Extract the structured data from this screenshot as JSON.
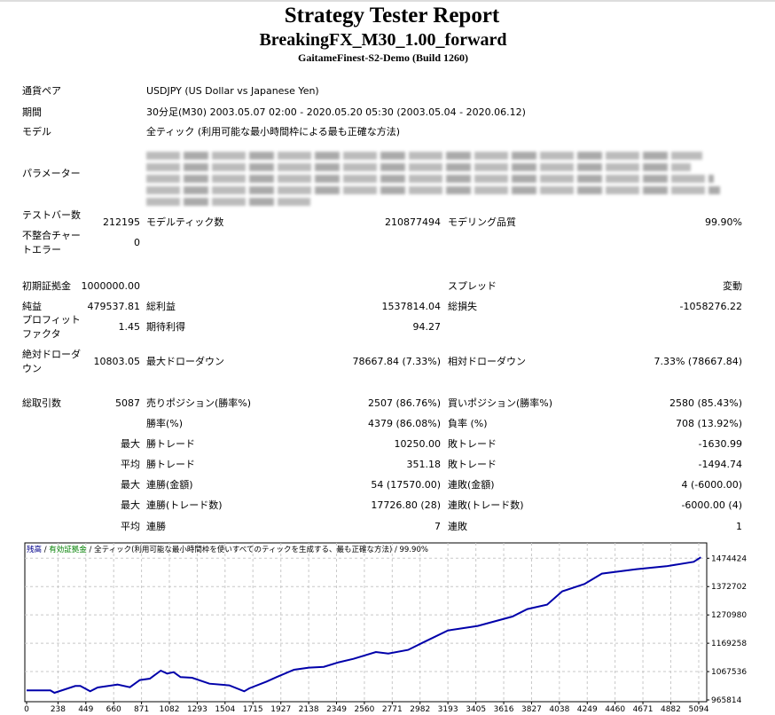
{
  "header": {
    "title": "Strategy Tester Report",
    "ea_name": "BreakingFX_M30_1.00_forward",
    "server": "GaitameFinest-S2-Demo (Build 1260)"
  },
  "info": {
    "symbol_label": "通貨ペア",
    "symbol_value": "USDJPY (US Dollar vs Japanese Yen)",
    "period_label": "期間",
    "period_value": "30分足(M30) 2003.05.07 02:00 - 2020.05.20 05:30 (2003.05.04 - 2020.06.12)",
    "model_label": "モデル",
    "model_value": "全ティック (利用可能な最小時間枠による最も正確な方法)",
    "params_label": "パラメーター"
  },
  "stats": [
    {
      "label": "テストバー数",
      "value": "212195",
      "label2": "モデルティック数",
      "value2": "210877494",
      "label3": "モデリング品質",
      "value3": "99.90%"
    },
    {
      "label": "不整合チャートエラー",
      "value": "0"
    },
    {
      "label": "初期証拠金",
      "value": "1000000.00",
      "label3": "スプレッド",
      "value3": "変動"
    },
    {
      "label": "純益",
      "value": "479537.81",
      "label2": "総利益",
      "value2": "1537814.04",
      "label3": "総損失",
      "value3": "-1058276.22"
    },
    {
      "label": "プロフィットファクタ",
      "value": "1.45",
      "label2": "期待利得",
      "value2": "94.27"
    },
    {
      "label": "絶対ドローダウン",
      "value": "10803.05",
      "label2": "最大ドローダウン",
      "value2": "78667.84 (7.33%)",
      "label3": "相対ドローダウン",
      "value3": "7.33% (78667.84)"
    },
    {
      "label": "総取引数",
      "value": "5087",
      "label2": "売りポジション(勝率%)",
      "value2": "2507 (86.76%)",
      "label3": "買いポジション(勝率%)",
      "value3": "2580 (85.43%)"
    },
    {
      "label2": "勝率(%)",
      "value2": "4379 (86.08%)",
      "label3": "負率 (%)",
      "value3": "708 (13.92%)"
    },
    {
      "value": "最大",
      "label2": "勝トレード",
      "value2": "10250.00",
      "label3": "敗トレード",
      "value3": "-1630.99"
    },
    {
      "value": "平均",
      "label2": "勝トレード",
      "value2": "351.18",
      "label3": "敗トレード",
      "value3": "-1494.74"
    },
    {
      "value": "最大",
      "label2": "連勝(金額)",
      "value2": "54 (17570.00)",
      "label3": "連敗(金額)",
      "value3": "4 (-6000.00)"
    },
    {
      "value": "最大",
      "label2": "連勝(トレード数)",
      "value2": "17726.80 (28)",
      "label3": "連敗(トレード数)",
      "value3": "-6000.00 (4)"
    },
    {
      "value": "平均",
      "label2": "連勝",
      "value2": "7",
      "label3": "連敗",
      "value3": "1"
    }
  ],
  "chart_data": {
    "type": "line",
    "legend": [
      {
        "text": "残高",
        "color": "#00008b"
      },
      {
        "text": " / ",
        "color": "#000000"
      },
      {
        "text": "有効証拠金",
        "color": "#008000"
      },
      {
        "text": " / 全ティック(利用可能な最小時間枠を使いすべてのティックを生成する、最も正確な方法) / 99.90%",
        "color": "#000000"
      }
    ],
    "x_ticks": [
      0,
      238,
      449,
      660,
      871,
      1082,
      1293,
      1504,
      1715,
      1927,
      2138,
      2349,
      2560,
      2771,
      2982,
      3193,
      3405,
      3616,
      3827,
      4038,
      4249,
      4460,
      4671,
      4882,
      5094
    ],
    "y_ticks": [
      965814,
      1067536,
      1169258,
      1270980,
      1372702,
      1474424
    ],
    "grid": true,
    "series": [
      {
        "color": "#0000aa",
        "points": [
          [
            0,
            1000000
          ],
          [
            180,
            1000000
          ],
          [
            211,
            991300
          ],
          [
            369,
            1015700
          ],
          [
            407,
            1015700
          ],
          [
            482,
            996600
          ],
          [
            538,
            1010400
          ],
          [
            689,
            1021000
          ],
          [
            783,
            1011500
          ],
          [
            858,
            1037000
          ],
          [
            934,
            1042300
          ],
          [
            1017,
            1071000
          ],
          [
            1066,
            1060300
          ],
          [
            1114,
            1065600
          ],
          [
            1167,
            1047600
          ],
          [
            1254,
            1045500
          ],
          [
            1386,
            1024200
          ],
          [
            1536,
            1017900
          ],
          [
            1649,
            996600
          ],
          [
            1687,
            1007200
          ],
          [
            1819,
            1031700
          ],
          [
            1894,
            1047600
          ],
          [
            2026,
            1074100
          ],
          [
            2139,
            1081600
          ],
          [
            2252,
            1084700
          ],
          [
            2365,
            1100700
          ],
          [
            2477,
            1113400
          ],
          [
            2647,
            1137800
          ],
          [
            2741,
            1132500
          ],
          [
            2892,
            1145300
          ],
          [
            3004,
            1171800
          ],
          [
            3193,
            1215300
          ],
          [
            3419,
            1231300
          ],
          [
            3682,
            1265200
          ],
          [
            3795,
            1291800
          ],
          [
            3945,
            1307700
          ],
          [
            4059,
            1355500
          ],
          [
            4228,
            1382000
          ],
          [
            4360,
            1419200
          ],
          [
            4623,
            1435100
          ],
          [
            4849,
            1445800
          ],
          [
            5056,
            1461700
          ],
          [
            5110,
            1478000
          ]
        ]
      }
    ]
  }
}
